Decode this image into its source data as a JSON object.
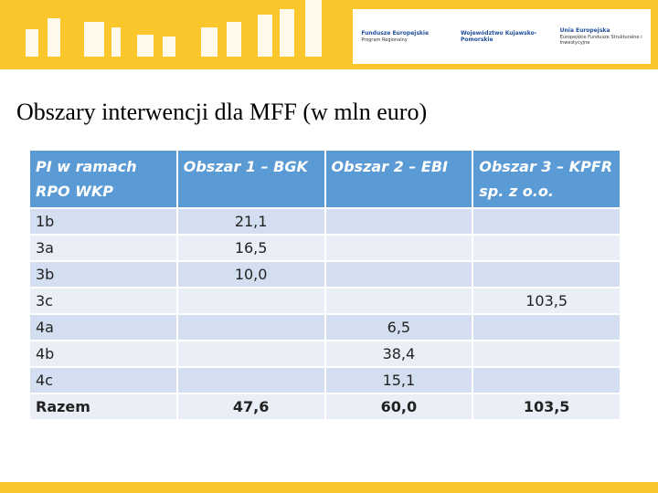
{
  "header": {
    "logos": [
      {
        "name": "Fundusze Europejskie",
        "sub": "Program Regionalny"
      },
      {
        "name": "Województwo Kujawsko-Pomorskie"
      },
      {
        "name": "Unia Europejska",
        "sub": "Europejskie Fundusze Strukturalne i Inwestycyjne"
      }
    ]
  },
  "title": "Obszary interwencji dla MFF (w mln euro)",
  "table": {
    "columns": [
      "PI w ramach RPO WKP",
      "Obszar 1 – BGK",
      "Obszar 2 – EBI",
      "Obszar 3 – KPFR sp. z o.o."
    ],
    "rows": [
      [
        "1b",
        "21,1",
        null,
        null
      ],
      [
        "3a",
        "16,5",
        null,
        null
      ],
      [
        "3b",
        "10,0",
        null,
        null
      ],
      [
        "3c",
        null,
        null,
        "103,5"
      ],
      [
        "4a",
        null,
        "6,5",
        null
      ],
      [
        "4b",
        null,
        "38,4",
        null
      ],
      [
        "4c",
        null,
        "15,1",
        null
      ],
      [
        "Razem",
        "47,6",
        "60,0",
        "103,5"
      ]
    ]
  }
}
